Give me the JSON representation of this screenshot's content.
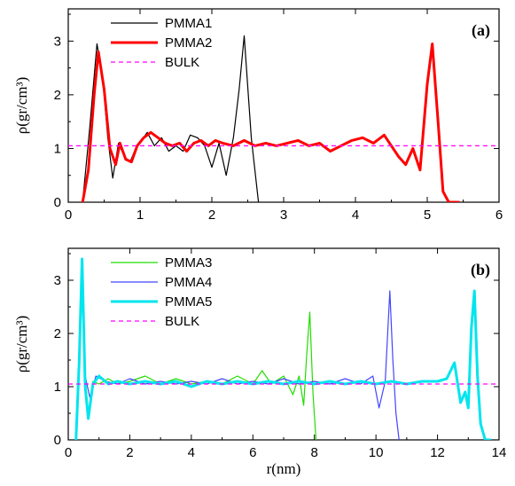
{
  "chart_data": [
    {
      "type": "line",
      "panel_label": "(a)",
      "xlabel": "",
      "ylabel": "ρ(gr/cm³)",
      "xlim": [
        0,
        6
      ],
      "ylim": [
        0,
        3.6
      ],
      "x_ticks": [
        0,
        1,
        2,
        3,
        4,
        5,
        6
      ],
      "y_ticks": [
        0,
        1,
        2,
        3
      ],
      "legend_position": "top-left",
      "series": [
        {
          "name": "PMMA1",
          "color": "#000000",
          "x": [
            0.2,
            0.3,
            0.4,
            0.48,
            0.55,
            0.62,
            0.7,
            0.78,
            0.86,
            0.94,
            1.02,
            1.1,
            1.2,
            1.3,
            1.4,
            1.5,
            1.6,
            1.7,
            1.8,
            1.9,
            2.0,
            2.1,
            2.2,
            2.3,
            2.38,
            2.45,
            2.55,
            2.65
          ],
          "y": [
            0,
            1.4,
            2.95,
            2.3,
            1.2,
            0.45,
            1.1,
            0.85,
            0.75,
            1.0,
            1.15,
            1.3,
            1.05,
            1.2,
            0.95,
            1.05,
            0.95,
            1.25,
            1.2,
            1.05,
            0.65,
            1.1,
            0.5,
            1.2,
            2.1,
            3.1,
            1.2,
            0
          ]
        },
        {
          "name": "PMMA2",
          "color": "#ff0000",
          "x": [
            0.2,
            0.28,
            0.36,
            0.42,
            0.5,
            0.58,
            0.66,
            0.72,
            0.8,
            0.88,
            0.96,
            1.05,
            1.15,
            1.25,
            1.35,
            1.45,
            1.55,
            1.65,
            1.75,
            1.85,
            1.95,
            2.05,
            2.15,
            2.3,
            2.45,
            2.6,
            2.75,
            2.9,
            3.05,
            3.2,
            3.35,
            3.5,
            3.65,
            3.8,
            3.95,
            4.1,
            4.25,
            4.4,
            4.5,
            4.6,
            4.7,
            4.8,
            4.9,
            5.0,
            5.07,
            5.15,
            5.22,
            5.3,
            5.45
          ],
          "y": [
            0,
            0.6,
            2.0,
            2.8,
            2.1,
            1.0,
            0.7,
            1.1,
            0.8,
            0.75,
            1.05,
            1.2,
            1.3,
            1.2,
            1.1,
            1.05,
            1.1,
            0.95,
            1.1,
            1.15,
            1.05,
            1.15,
            1.1,
            1.05,
            1.15,
            1.05,
            1.1,
            1.05,
            1.1,
            1.15,
            1.05,
            1.1,
            0.95,
            1.05,
            1.15,
            1.2,
            1.1,
            1.25,
            1.05,
            0.85,
            0.7,
            1.0,
            0.6,
            2.2,
            2.95,
            1.5,
            0.2,
            0,
            0
          ]
        },
        {
          "name": "BULK",
          "color": "#ff00ff",
          "dashed": true,
          "x": [
            0,
            6
          ],
          "y": [
            1.05,
            1.05
          ]
        }
      ]
    },
    {
      "type": "line",
      "panel_label": "(b)",
      "xlabel": "r(nm)",
      "ylabel": "ρ(gr/cm³)",
      "xlim": [
        0,
        14
      ],
      "ylim": [
        0,
        3.6
      ],
      "x_ticks": [
        0,
        2,
        4,
        6,
        8,
        10,
        12,
        14
      ],
      "y_ticks": [
        0,
        1,
        2,
        3
      ],
      "legend_position": "top-left",
      "series": [
        {
          "name": "PMMA3",
          "color": "#22dd00",
          "x": [
            0.25,
            0.35,
            0.45,
            0.55,
            0.65,
            0.8,
            1.0,
            1.3,
            1.6,
            2.0,
            2.5,
            3.0,
            3.5,
            4.0,
            4.5,
            5.0,
            5.5,
            6.0,
            6.3,
            6.6,
            7.0,
            7.3,
            7.5,
            7.65,
            7.75,
            7.85,
            7.95,
            8.05
          ],
          "y": [
            0,
            1.5,
            3.3,
            1.2,
            0.5,
            1.1,
            1.05,
            1.15,
            1.05,
            1.1,
            1.2,
            1.05,
            1.15,
            1.05,
            1.1,
            1.05,
            1.2,
            1.05,
            1.3,
            1.05,
            1.2,
            0.85,
            1.2,
            0.65,
            1.6,
            2.4,
            0.9,
            0
          ]
        },
        {
          "name": "PMMA4",
          "color": "#4444ff",
          "x": [
            0.25,
            0.35,
            0.45,
            0.55,
            0.7,
            0.9,
            1.2,
            1.6,
            2.0,
            2.5,
            3.0,
            3.5,
            4.0,
            4.5,
            5.0,
            5.5,
            6.0,
            6.5,
            7.0,
            7.5,
            8.0,
            8.5,
            9.0,
            9.5,
            9.9,
            10.1,
            10.3,
            10.45,
            10.55,
            10.65,
            10.75
          ],
          "y": [
            0,
            1.5,
            3.35,
            1.2,
            0.8,
            1.2,
            1.1,
            1.05,
            1.15,
            1.05,
            1.1,
            1.05,
            1.1,
            1.05,
            1.15,
            1.05,
            1.1,
            1.05,
            1.15,
            1.05,
            1.1,
            1.05,
            1.15,
            1.05,
            1.2,
            0.6,
            1.1,
            2.8,
            1.5,
            0.5,
            0
          ]
        },
        {
          "name": "PMMA5",
          "color": "#00e5ee",
          "x": [
            0.25,
            0.35,
            0.45,
            0.55,
            0.65,
            0.8,
            1.0,
            1.3,
            1.6,
            2.0,
            2.5,
            3.0,
            3.5,
            4.0,
            4.5,
            5.0,
            5.5,
            6.0,
            6.5,
            7.0,
            7.5,
            8.0,
            8.5,
            9.0,
            9.5,
            10.0,
            10.5,
            11.0,
            11.5,
            12.0,
            12.3,
            12.55,
            12.75,
            12.9,
            13.0,
            13.1,
            13.2,
            13.3,
            13.4,
            13.55,
            13.75
          ],
          "y": [
            0,
            1.4,
            3.4,
            1.0,
            0.4,
            1.05,
            1.2,
            1.05,
            1.1,
            1.05,
            1.1,
            1.05,
            1.1,
            1.0,
            1.1,
            1.05,
            1.1,
            1.05,
            1.1,
            1.05,
            1.1,
            1.05,
            1.1,
            1.05,
            1.1,
            1.05,
            1.1,
            1.05,
            1.1,
            1.1,
            1.15,
            1.45,
            0.7,
            0.9,
            0.6,
            2.1,
            2.8,
            1.2,
            0.3,
            0,
            0
          ]
        },
        {
          "name": "BULK",
          "color": "#ff00ff",
          "dashed": true,
          "x": [
            0,
            14
          ],
          "y": [
            1.05,
            1.05
          ]
        }
      ]
    }
  ]
}
